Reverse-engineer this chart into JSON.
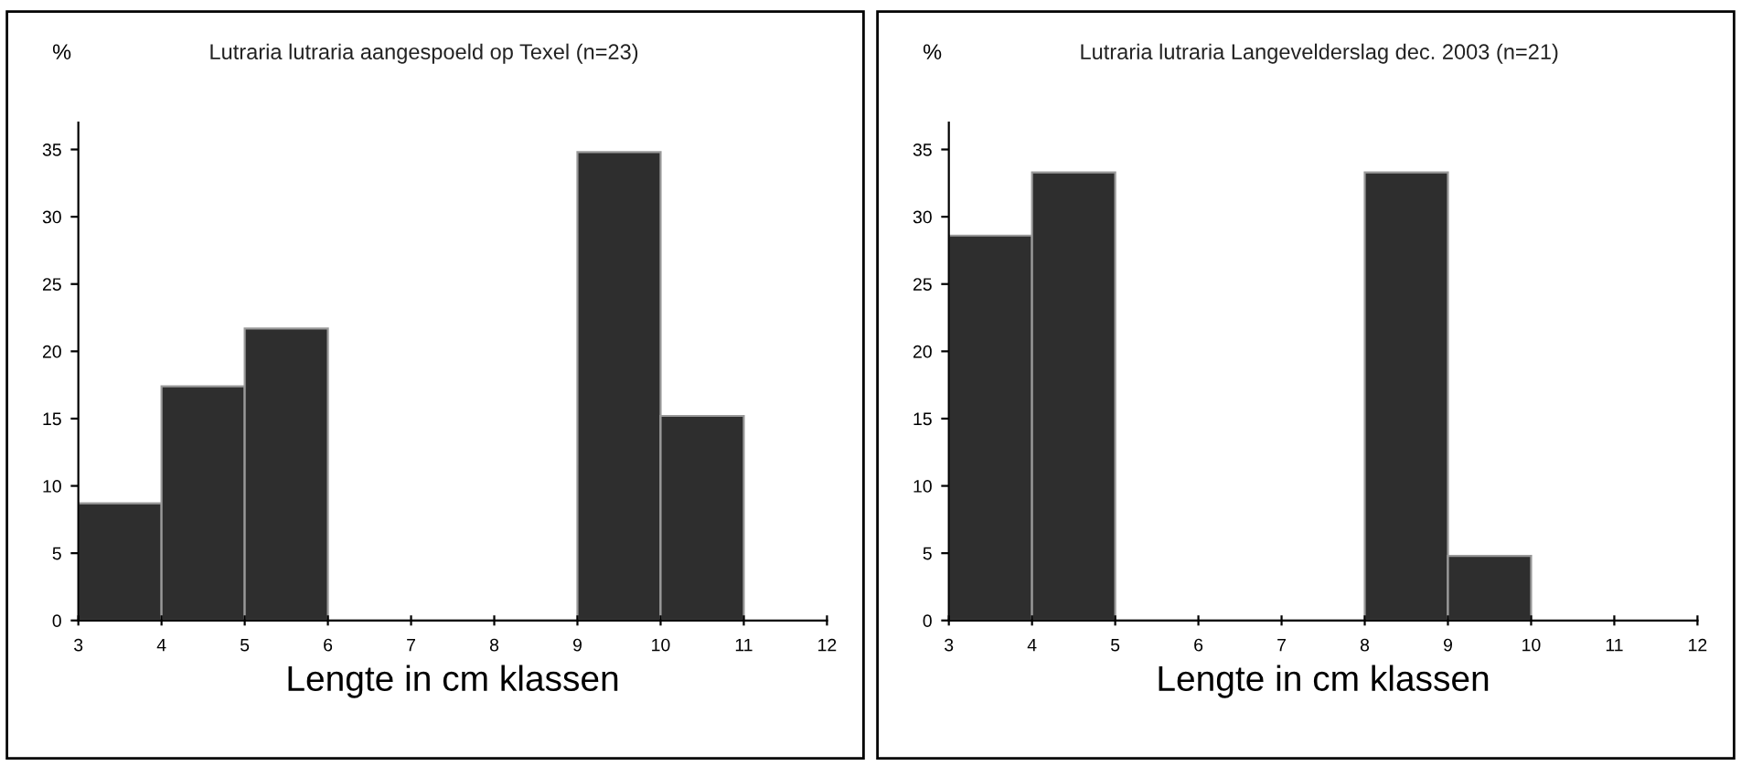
{
  "chart_data": [
    {
      "type": "histogram",
      "title": "Lutraria lutraria aangespoeld op Texel (n=23)",
      "ylabel": "%",
      "xlabel": "Lengte in cm klassen",
      "bins": [
        3,
        4,
        5,
        6,
        7,
        8,
        9,
        10,
        11
      ],
      "values": [
        8.7,
        17.4,
        21.7,
        0,
        0,
        0,
        34.8,
        15.2
      ],
      "color": "#2e2e2e",
      "xlim": [
        3,
        12
      ],
      "xticks": [
        3,
        4,
        5,
        6,
        7,
        8,
        9,
        10,
        11,
        12
      ],
      "ylim": [
        0,
        37
      ],
      "yticks": [
        0,
        5,
        10,
        15,
        20,
        25,
        30,
        35
      ],
      "grid": false,
      "legend": false
    },
    {
      "type": "histogram",
      "title": "Lutraria lutraria Langevelderslag dec. 2003 (n=21)",
      "ylabel": "%",
      "xlabel": "Lengte in cm klassen",
      "bins": [
        3,
        4,
        5,
        6,
        7,
        8,
        9,
        10
      ],
      "values": [
        28.6,
        33.3,
        0,
        0,
        0,
        33.3,
        4.8
      ],
      "color": "#2e2e2e",
      "xlim": [
        3,
        12
      ],
      "xticks": [
        3,
        4,
        5,
        6,
        7,
        8,
        9,
        10,
        11,
        12
      ],
      "ylim": [
        0,
        37
      ],
      "yticks": [
        0,
        5,
        10,
        15,
        20,
        25,
        30,
        35
      ],
      "grid": false,
      "legend": false
    }
  ]
}
